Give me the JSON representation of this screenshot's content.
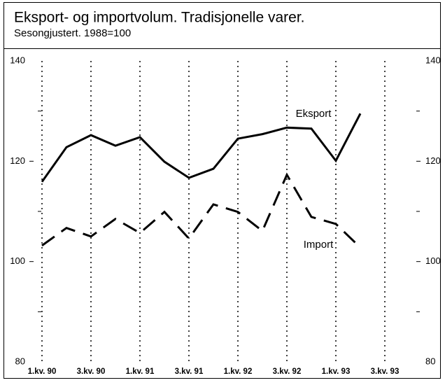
{
  "chart_data": {
    "type": "line",
    "title": "Eksport- og importvolum. Tradisjonelle varer.",
    "subtitle": "Sesongjustert. 1988=100",
    "categories": [
      "1.kv. 90",
      null,
      "3.kv. 90",
      null,
      "1.kv. 91",
      null,
      "3.kv. 91",
      null,
      "1.kv. 92",
      null,
      "3.kv. 92",
      null,
      "1.kv. 93",
      null,
      "3.kv. 93"
    ],
    "series": [
      {
        "name": "Eksport",
        "color": "#000000",
        "dash": "solid",
        "values": [
          115.9,
          122.8,
          125.2,
          123.1,
          124.8,
          119.9,
          116.7,
          118.5,
          124.5,
          125.4,
          126.7,
          126.5,
          120.1,
          129.5,
          null
        ]
      },
      {
        "name": "Import",
        "color": "#000000",
        "dash": "dashed",
        "values": [
          103.2,
          106.7,
          105.0,
          108.5,
          105.7,
          109.9,
          104.6,
          111.4,
          109.9,
          106.1,
          117.3,
          108.9,
          107.5,
          102.8,
          null
        ]
      }
    ],
    "ylim": [
      80,
      140
    ],
    "yticks": [
      80,
      100,
      120,
      140
    ],
    "minor_yticks": [
      90,
      110,
      130
    ],
    "grid": "x-dotted",
    "right_axis": true
  }
}
